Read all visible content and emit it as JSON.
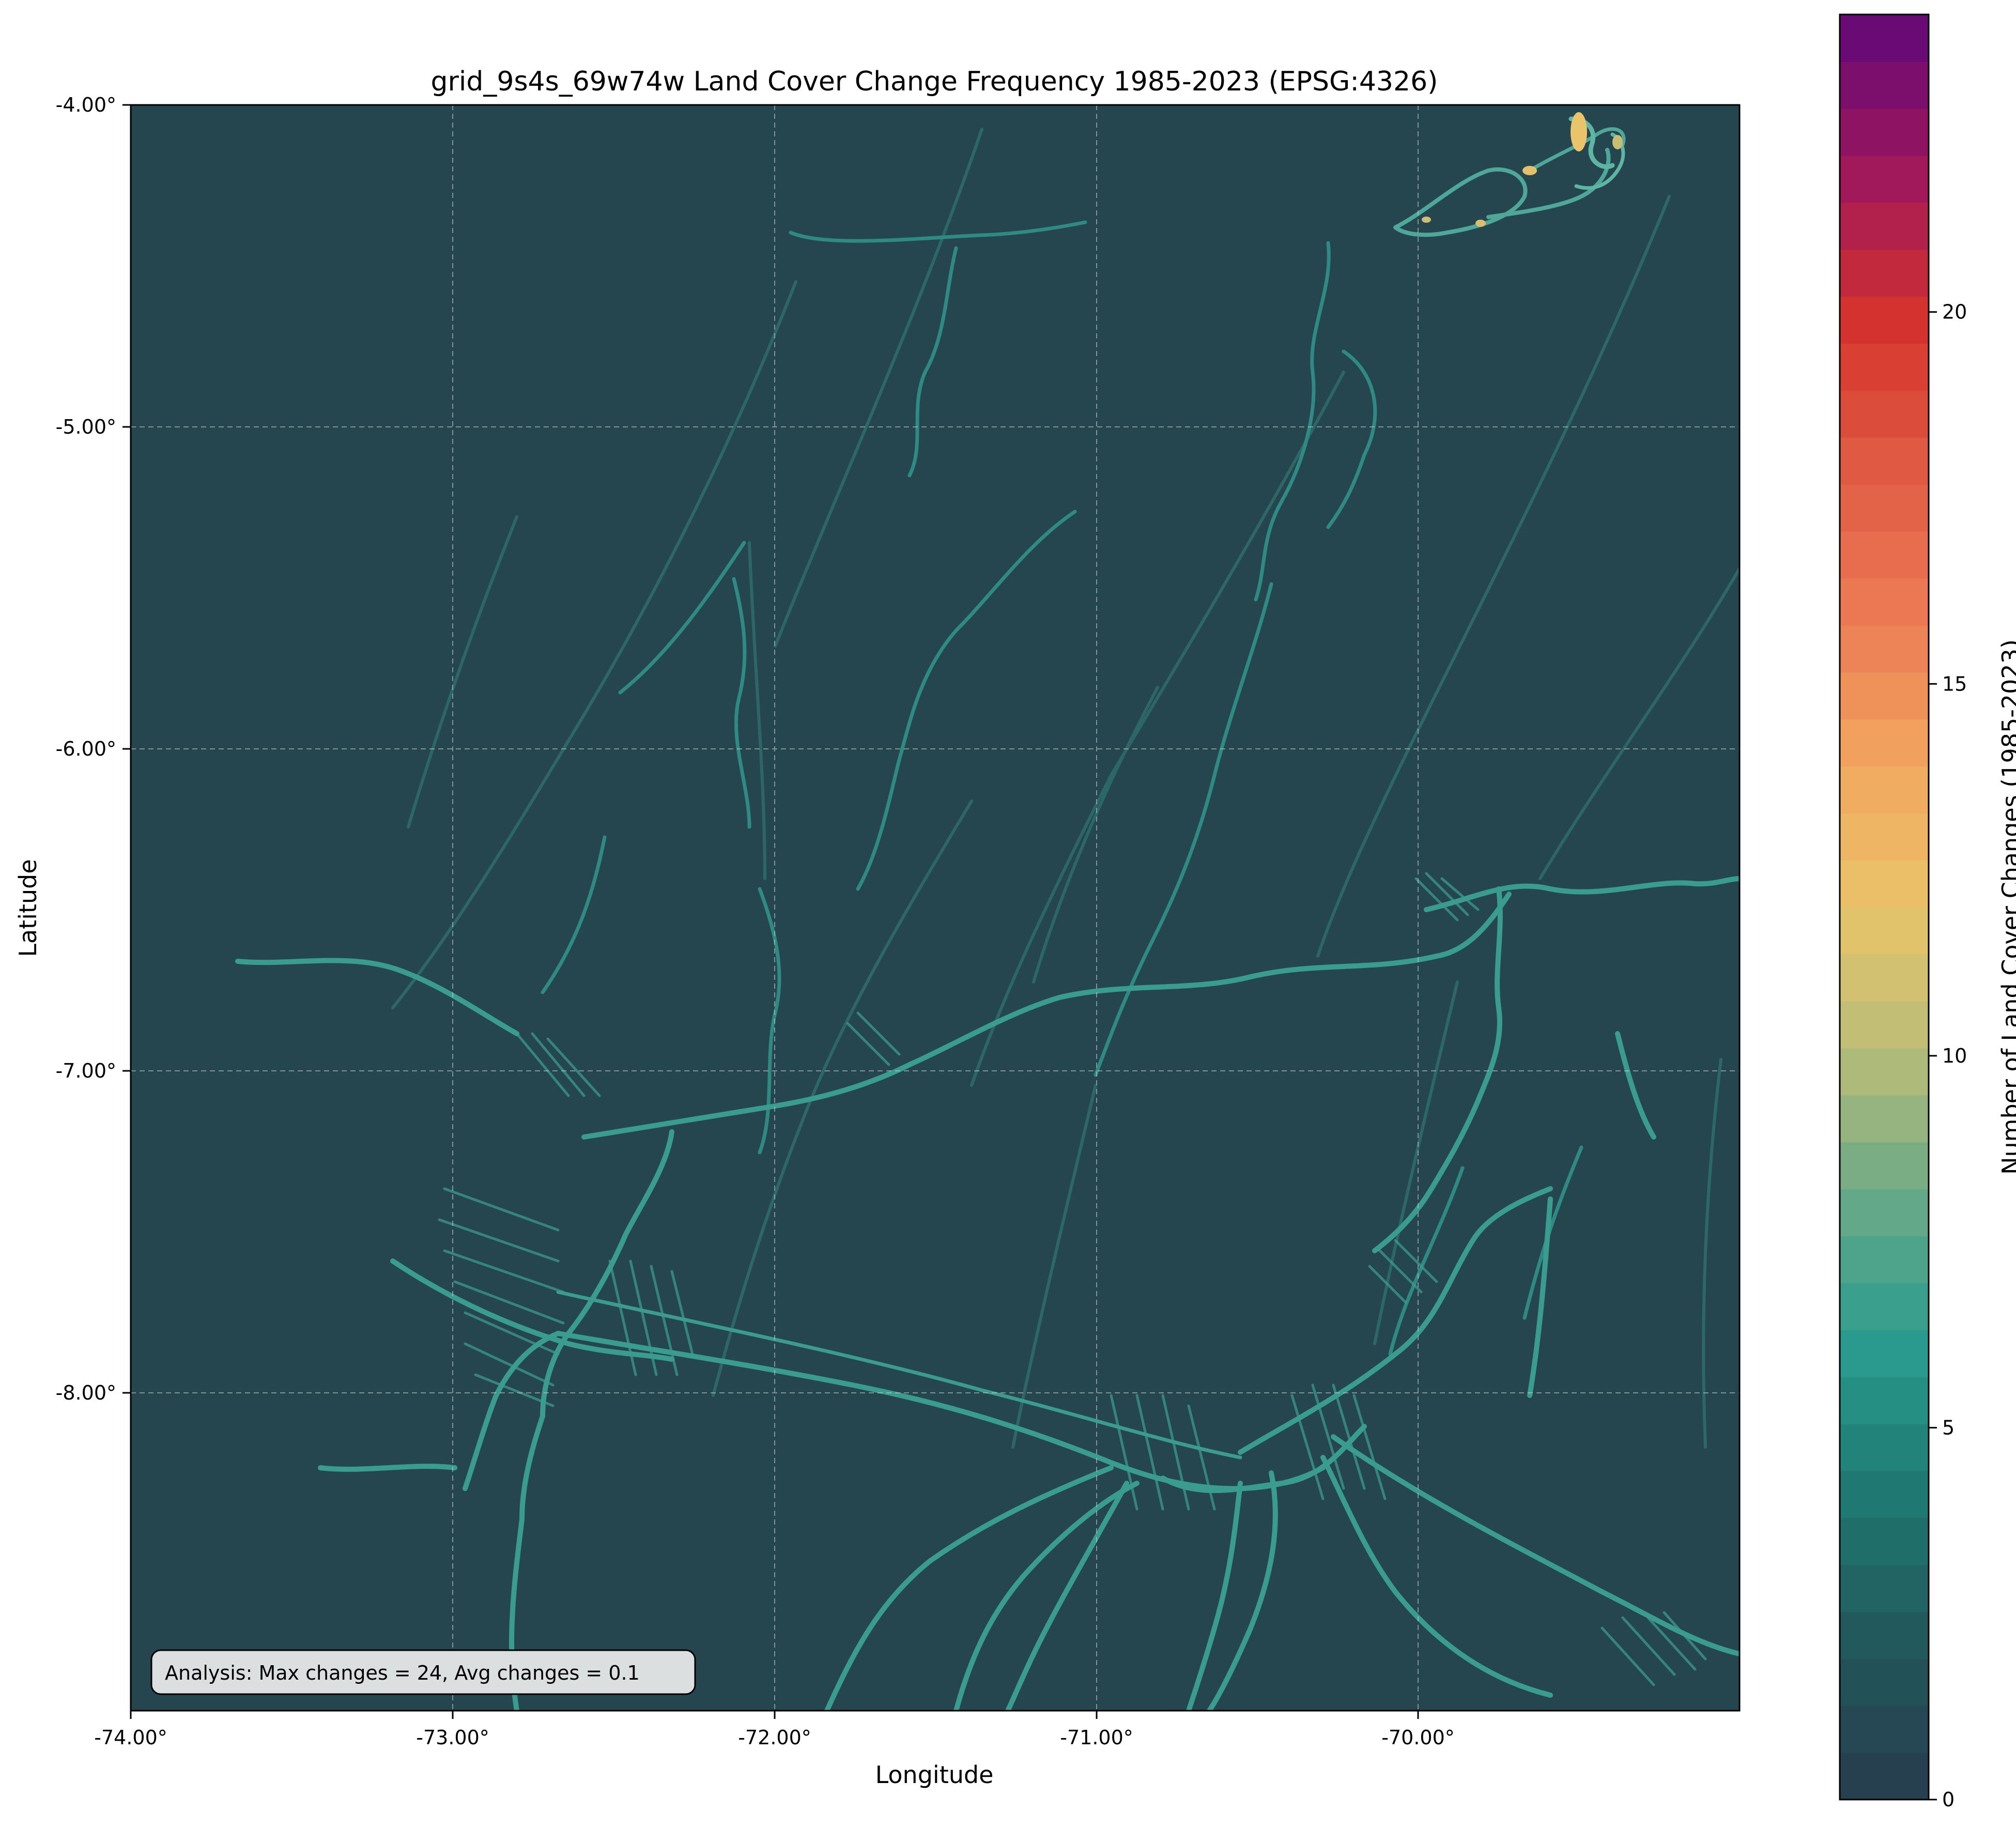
{
  "title": "grid_9s4s_69w74w Land Cover Change Frequency 1985-2023 (EPSG:4326)",
  "xlabel": "Longitude",
  "ylabel": "Latitude",
  "x_ticks": [
    "-74.00°",
    "-73.00°",
    "-72.00°",
    "-71.00°",
    "-70.00°"
  ],
  "y_ticks": [
    "-4.00°",
    "-5.00°",
    "-6.00°",
    "-7.00°",
    "-8.00°"
  ],
  "colorbar": {
    "label": "Number of Land Cover Changes (1985-2023)",
    "ticks": [
      "0",
      "5",
      "10",
      "15",
      "20"
    ],
    "min": 0,
    "max": 24,
    "levels": 38,
    "stops": [
      "#26404f",
      "#225a5d",
      "#1f7a72",
      "#2a9d8f",
      "#6aa987",
      "#b9bd78",
      "#e9c46a",
      "#f2a65e",
      "#ec7a55",
      "#e05c45",
      "#d6342c",
      "#a3185a",
      "#6a0a75"
    ]
  },
  "annotation": "Analysis: Max changes = 24, Avg changes = 0.1",
  "colors": {
    "background": "#26464f",
    "feature": "#2f8a83",
    "feature_bright": "#5fb5a4",
    "hot": "#e9c46a"
  }
}
